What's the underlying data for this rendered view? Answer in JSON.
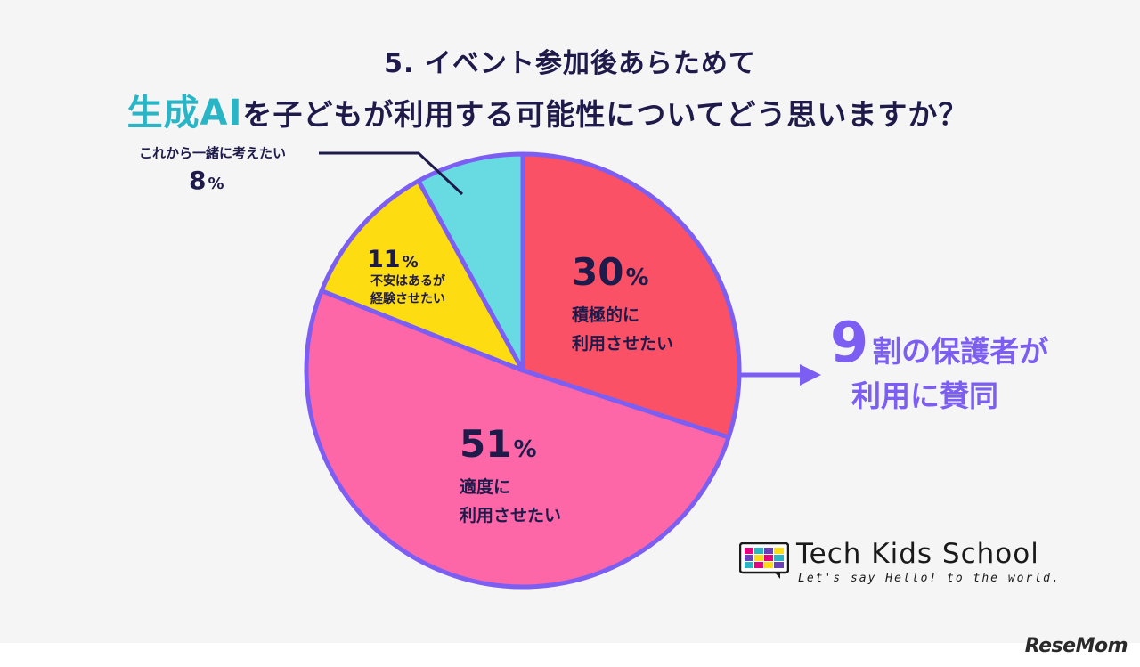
{
  "title": {
    "line1": "5. イベント参加後あらためて",
    "line2_highlight": "生成AI",
    "line2_rest": "を子どもが利用する可能性についてどう思いますか？"
  },
  "chart_data": {
    "type": "pie",
    "start_angle_deg": 0,
    "direction": "clockwise",
    "slices": [
      {
        "value": 30,
        "value_text": "30",
        "unit": "%",
        "label_lines": [
          "積極的に",
          "利用させたい"
        ],
        "color": "#fa5166"
      },
      {
        "value": 51,
        "value_text": "51",
        "unit": "%",
        "label_lines": [
          "適度に",
          "利用させたい"
        ],
        "color": "#fd67a7"
      },
      {
        "value": 11,
        "value_text": "11",
        "unit": "%",
        "label_lines": [
          "不安はあるが",
          "経験させたい"
        ],
        "color": "#fddd11"
      },
      {
        "value": 8,
        "value_text": "8",
        "unit": "%",
        "label_lines": [
          "これから一緒に考えたい"
        ],
        "color": "#68dbe2"
      }
    ],
    "outline_color": "#7c5ef2"
  },
  "callout": {
    "big": "9",
    "line1_rest": "割の保護者が",
    "line2": "利用に賛同",
    "color": "#7c5ef2"
  },
  "logo": {
    "name": "Tech Kids School",
    "tagline": "Let's say Hello! to the world."
  },
  "watermark": "ReseMom",
  "colors": {
    "background": "#f5f5f6",
    "title": "#1e1a4a",
    "highlight": "#2ab5c6"
  }
}
